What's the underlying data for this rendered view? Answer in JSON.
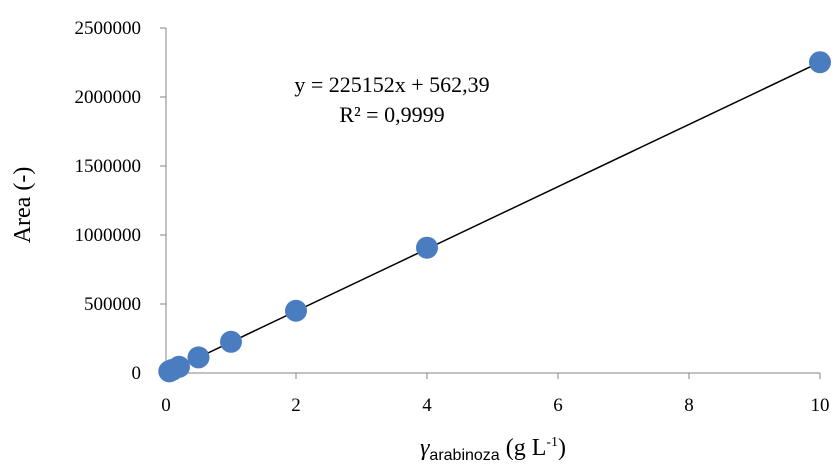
{
  "chart_data": {
    "type": "scatter",
    "title": "",
    "ylabel": "Area (-)",
    "xlabel": {
      "symbol": "γ",
      "subscript": "arabinoza",
      "units_prefix": " (g L",
      "units_superscript": "-1",
      "units_suffix": ")"
    },
    "xlim": [
      0,
      10
    ],
    "ylim": [
      0,
      2500000
    ],
    "x_ticks": [
      "0",
      "2",
      "4",
      "6",
      "8",
      "10"
    ],
    "y_ticks": [
      "0",
      "500000",
      "1000000",
      "1500000",
      "2000000",
      "2500000"
    ],
    "x_tick_values": [
      0,
      2,
      4,
      6,
      8,
      10
    ],
    "y_tick_values": [
      0,
      500000,
      1000000,
      1500000,
      2000000,
      2500000
    ],
    "x_scale": "piecewise-linear",
    "grid": false,
    "series": [
      {
        "x": [
          0.05,
          0.1,
          0.2,
          0.5,
          1,
          2,
          4,
          10
        ],
        "y": [
          12000,
          23000,
          45000,
          113000,
          226000,
          451000,
          908000,
          2252000
        ],
        "color": "#4a7cc0"
      }
    ],
    "trendline": {
      "slope": 225152,
      "intercept": 562.39,
      "x_range": [
        0.05,
        10
      ],
      "color": "#000000"
    },
    "annotations": {
      "equation": "y = 225152x + 562,39",
      "r_squared": "R² = 0,9999"
    }
  }
}
